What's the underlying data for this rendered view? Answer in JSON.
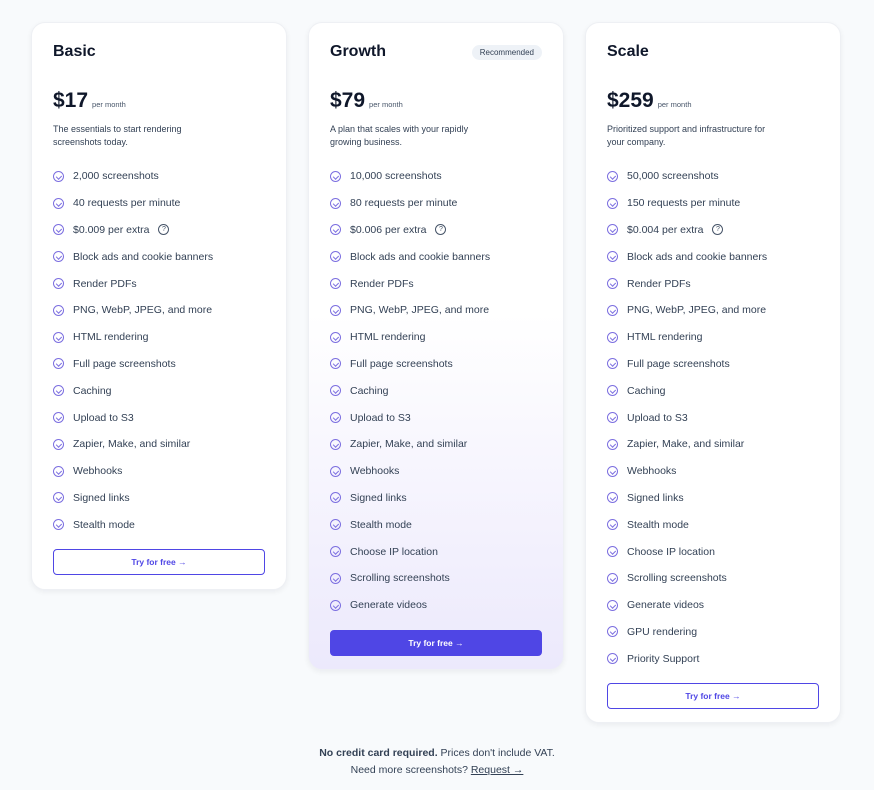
{
  "plans": [
    {
      "name": "Basic",
      "price": "$17",
      "period": "per month",
      "description": "The essentials to start rendering screenshots today.",
      "features": [
        "2,000 screenshots",
        "40 requests per minute",
        "$0.009 per extra",
        "Block ads and cookie banners",
        "Render PDFs",
        "PNG, WebP, JPEG, and more",
        "HTML rendering",
        "Full page screenshots",
        "Caching",
        "Upload to S3",
        "Zapier, Make, and similar",
        "Webhooks",
        "Signed links",
        "Stealth mode"
      ],
      "cta": "Try for free →"
    },
    {
      "name": "Growth",
      "badge": "Recommended",
      "price": "$79",
      "period": "per month",
      "description": "A plan that scales with your rapidly growing business.",
      "features": [
        "10,000 screenshots",
        "80 requests per minute",
        "$0.006 per extra",
        "Block ads and cookie banners",
        "Render PDFs",
        "PNG, WebP, JPEG, and more",
        "HTML rendering",
        "Full page screenshots",
        "Caching",
        "Upload to S3",
        "Zapier, Make, and similar",
        "Webhooks",
        "Signed links",
        "Stealth mode",
        "Choose IP location",
        "Scrolling screenshots",
        "Generate videos"
      ],
      "cta": "Try for free →"
    },
    {
      "name": "Scale",
      "price": "$259",
      "period": "per month",
      "description": "Prioritized support and infrastructure for your company.",
      "features": [
        "50,000 screenshots",
        "150 requests per minute",
        "$0.004 per extra",
        "Block ads and cookie banners",
        "Render PDFs",
        "PNG, WebP, JPEG, and more",
        "HTML rendering",
        "Full page screenshots",
        "Caching",
        "Upload to S3",
        "Zapier, Make, and similar",
        "Webhooks",
        "Signed links",
        "Stealth mode",
        "Choose IP location",
        "Scrolling screenshots",
        "Generate videos",
        "GPU rendering",
        "Priority Support"
      ],
      "cta": "Try for free →"
    }
  ],
  "help_icon_glyph": "?",
  "footer": {
    "bold": "No credit card required.",
    "text": " Prices don't include VAT.",
    "line2": "Need more screenshots? ",
    "link": "Request →"
  },
  "colors": {
    "accent": "#4f46e5"
  }
}
